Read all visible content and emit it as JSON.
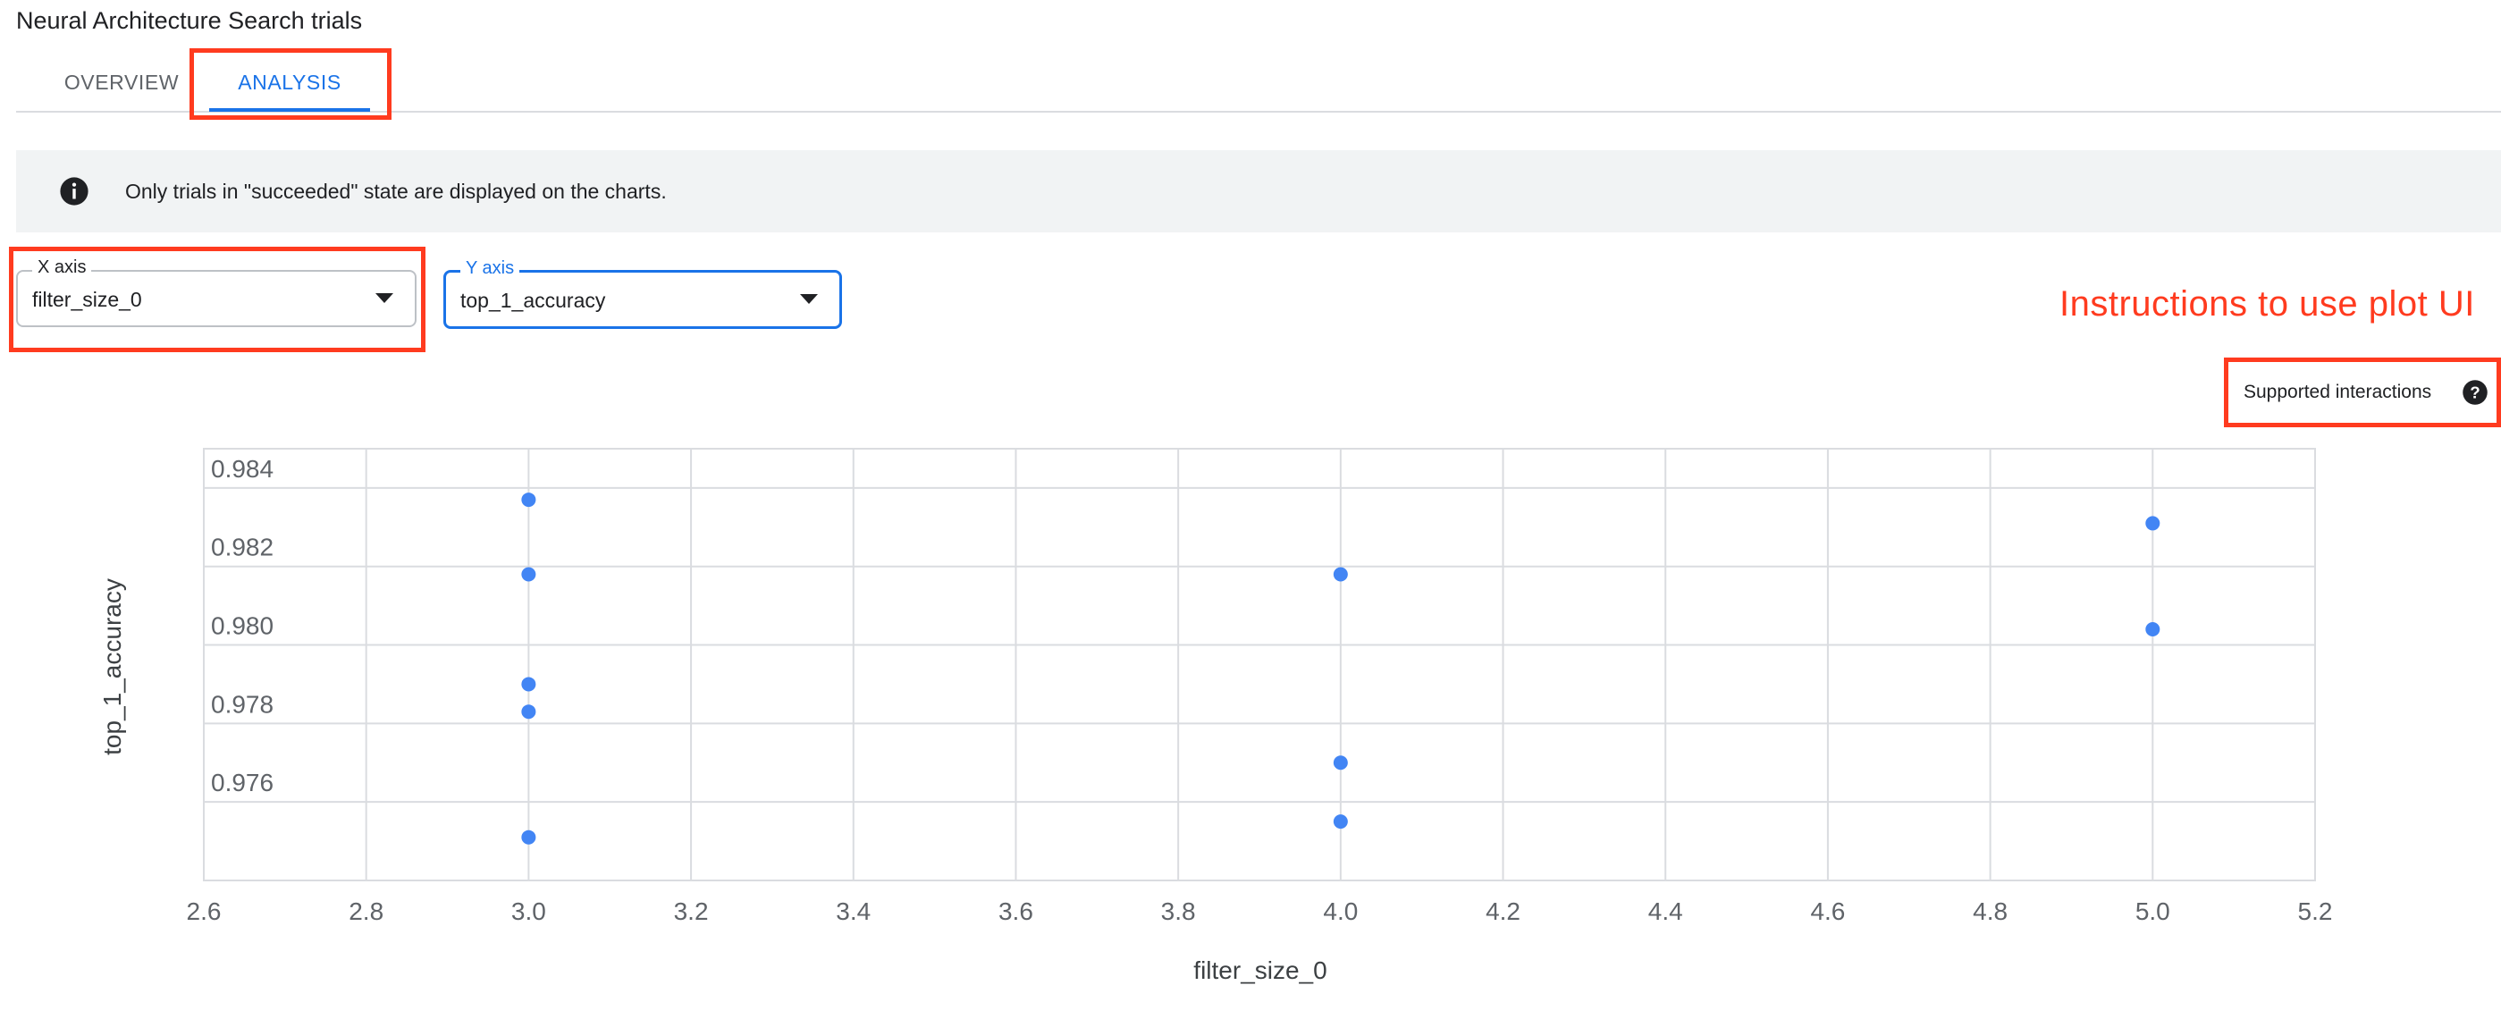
{
  "page": {
    "title": "Neural Architecture Search trials"
  },
  "tabs": [
    {
      "label": "OVERVIEW",
      "active": false
    },
    {
      "label": "ANALYSIS",
      "active": true
    }
  ],
  "info_banner": {
    "icon": "info-icon",
    "text": "Only trials in \"succeeded\" state are displayed on the charts."
  },
  "x_axis_select": {
    "label": "X axis",
    "value": "filter_size_0"
  },
  "y_axis_select": {
    "label": "Y axis",
    "value": "top_1_accuracy"
  },
  "annotation": {
    "text": "Instructions to use plot UI",
    "color": "#ff3b1f"
  },
  "supported_interactions": {
    "label": "Supported interactions",
    "icon": "help-icon"
  },
  "colors": {
    "accent": "#1a73e8",
    "point": "#4285f4",
    "annotation": "#ff3b1f"
  },
  "chart_data": {
    "type": "scatter",
    "xlabel": "filter_size_0",
    "ylabel": "top_1_accuracy",
    "xlim": [
      2.6,
      5.2
    ],
    "ylim": [
      0.974,
      0.985
    ],
    "x_ticks": [
      2.6,
      2.8,
      3.0,
      3.2,
      3.4,
      3.6,
      3.8,
      4.0,
      4.2,
      4.4,
      4.6,
      4.8,
      5.0,
      5.2
    ],
    "y_ticks": [
      0.976,
      0.978,
      0.98,
      0.982,
      0.984
    ],
    "x_tick_labels": [
      "2.6",
      "2.8",
      "3.0",
      "3.2",
      "3.4",
      "3.6",
      "3.8",
      "4.0",
      "4.2",
      "4.4",
      "4.6",
      "4.8",
      "5.0",
      "5.2"
    ],
    "y_tick_labels": [
      "0.976",
      "0.978",
      "0.980",
      "0.982",
      "0.984"
    ],
    "grid": true,
    "points": [
      {
        "x": 3.0,
        "y": 0.9837
      },
      {
        "x": 3.0,
        "y": 0.9818
      },
      {
        "x": 3.0,
        "y": 0.979
      },
      {
        "x": 3.0,
        "y": 0.9783
      },
      {
        "x": 3.0,
        "y": 0.9751
      },
      {
        "x": 4.0,
        "y": 0.9818
      },
      {
        "x": 4.0,
        "y": 0.977
      },
      {
        "x": 4.0,
        "y": 0.9755
      },
      {
        "x": 5.0,
        "y": 0.9831
      },
      {
        "x": 5.0,
        "y": 0.9804
      }
    ]
  }
}
